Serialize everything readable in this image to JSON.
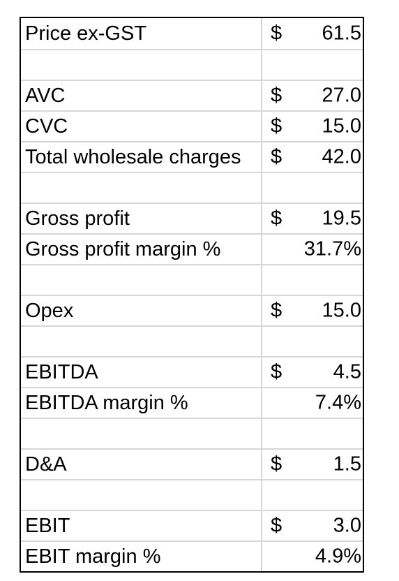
{
  "rows": [
    {
      "label": "Price ex-GST",
      "currency": "$",
      "value": "61.5"
    },
    {
      "label": "",
      "currency": "",
      "value": ""
    },
    {
      "label": "AVC",
      "currency": "$",
      "value": "27.0"
    },
    {
      "label": "CVC",
      "currency": "$",
      "value": "15.0"
    },
    {
      "label": "Total wholesale charges",
      "currency": "$",
      "value": "42.0"
    },
    {
      "label": "",
      "currency": "",
      "value": ""
    },
    {
      "label": "Gross profit",
      "currency": "$",
      "value": "19.5"
    },
    {
      "label": "Gross profit margin %",
      "currency": "",
      "value": "31.7%"
    },
    {
      "label": "",
      "currency": "",
      "value": ""
    },
    {
      "label": "Opex",
      "currency": "$",
      "value": "15.0"
    },
    {
      "label": "",
      "currency": "",
      "value": ""
    },
    {
      "label": "EBITDA",
      "currency": "$",
      "value": "4.5"
    },
    {
      "label": "EBITDA margin %",
      "currency": "",
      "value": "7.4%"
    },
    {
      "label": "",
      "currency": "",
      "value": ""
    },
    {
      "label": "D&A",
      "currency": "$",
      "value": "1.5"
    },
    {
      "label": "",
      "currency": "",
      "value": ""
    },
    {
      "label": "EBIT",
      "currency": "$",
      "value": "3.0"
    },
    {
      "label": "EBIT margin %",
      "currency": "",
      "value": "4.9%"
    }
  ]
}
